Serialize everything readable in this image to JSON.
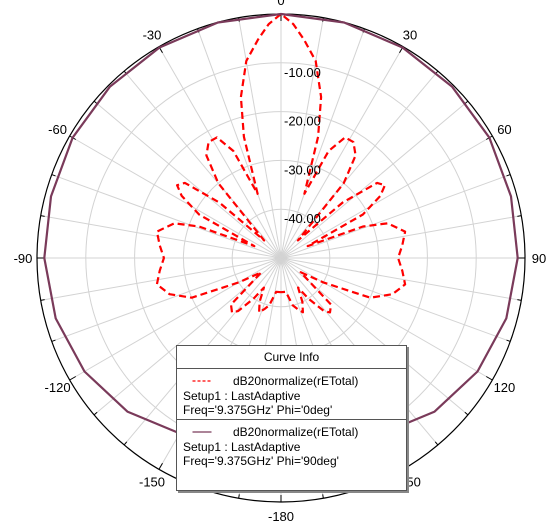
{
  "chart_data": {
    "type": "polar-line",
    "angular_ticks": [
      "0",
      "30",
      "60",
      "90",
      "120",
      "150",
      "-180",
      "-150",
      "-120",
      "-90",
      "-60",
      "-30"
    ],
    "radial_ticks": [
      "-10.00",
      "-20.00",
      "-30.00",
      "-40.00"
    ],
    "radial_values": [
      -10,
      -20,
      -30,
      -40
    ],
    "rlim": [
      -50,
      0
    ],
    "grid": true,
    "series": [
      {
        "name": "dB20normalize(rETotal)",
        "setup": "Setup1 : LastAdaptive",
        "freq": "Freq='9.375GHz' Phi='0deg'",
        "color": "#ff0000",
        "style": "dashed",
        "angles": [
          -180,
          -172,
          -166,
          -162,
          -158,
          -154,
          -150,
          -146,
          -141,
          -138,
          -133,
          -126,
          -120,
          -114,
          -108,
          -102,
          -96,
          -90,
          -84,
          -78,
          -72,
          -69,
          -66,
          -62,
          -58,
          -55,
          -52,
          -48,
          -44,
          -40,
          -36,
          -32,
          -28,
          -24,
          -20,
          -17,
          -14,
          -10,
          -6,
          -3,
          0,
          3,
          6,
          10,
          14,
          17,
          20,
          24,
          28,
          32,
          36,
          40,
          44,
          48,
          52,
          55,
          58,
          62,
          66,
          69,
          72,
          78,
          84,
          90,
          96,
          102,
          108,
          114,
          120,
          126,
          133,
          138,
          141,
          146,
          150,
          154,
          158,
          162,
          166,
          172,
          180
        ],
        "values": [
          -43,
          -43,
          -40,
          -39,
          -38,
          -40,
          -43,
          -40,
          -36,
          -35,
          -36,
          -45,
          -40,
          -30,
          -26,
          -24,
          -25,
          -26,
          -25,
          -24,
          -27,
          -32,
          -44,
          -31,
          -26,
          -24,
          -25,
          -33,
          -45,
          -30,
          -24,
          -22,
          -22,
          -26,
          -36,
          -24,
          -16,
          -9,
          -5,
          -2,
          0,
          -2,
          -5,
          -9,
          -16,
          -24,
          -36,
          -26,
          -22,
          -22,
          -24,
          -30,
          -45,
          -33,
          -25,
          -24,
          -26,
          -31,
          -44,
          -32,
          -27,
          -24,
          -25,
          -26,
          -25,
          -24,
          -26,
          -30,
          -40,
          -45,
          -36,
          -35,
          -36,
          -40,
          -43,
          -40,
          -38,
          -39,
          -40,
          -43,
          -43
        ]
      },
      {
        "name": "dB20normalize(rETotal)",
        "setup": "Setup1 : LastAdaptive",
        "freq": "Freq='9.375GHz' Phi='90deg'",
        "color": "#7a3a5a",
        "style": "solid",
        "angles": [
          -180,
          -165,
          -150,
          -135,
          -120,
          -105,
          -90,
          -75,
          -60,
          -45,
          -30,
          -15,
          0,
          15,
          30,
          45,
          60,
          75,
          90,
          105,
          120,
          135,
          150,
          165,
          180
        ],
        "values": [
          -13,
          -12,
          -8.5,
          -5.5,
          -3.5,
          -2.2,
          -1.5,
          -1.2,
          -0.7,
          -0.4,
          -0.2,
          -0.05,
          0,
          -0.05,
          -0.2,
          -0.4,
          -0.7,
          -1.2,
          -1.5,
          -2.2,
          -3.5,
          -5.5,
          -8.5,
          -12,
          -13
        ]
      }
    ]
  },
  "legend": {
    "title": "Curve Info",
    "entries": [
      {
        "name": "dB20normalize(rETotal)",
        "setup": "Setup1 : LastAdaptive",
        "freq": "Freq='9.375GHz' Phi='0deg'",
        "color": "#ff0000",
        "style": "dashed"
      },
      {
        "name": "dB20normalize(rETotal)",
        "setup": "Setup1 : LastAdaptive",
        "freq": "Freq='9.375GHz' Phi='90deg'",
        "color": "#7a3a5a",
        "style": "solid"
      }
    ]
  }
}
